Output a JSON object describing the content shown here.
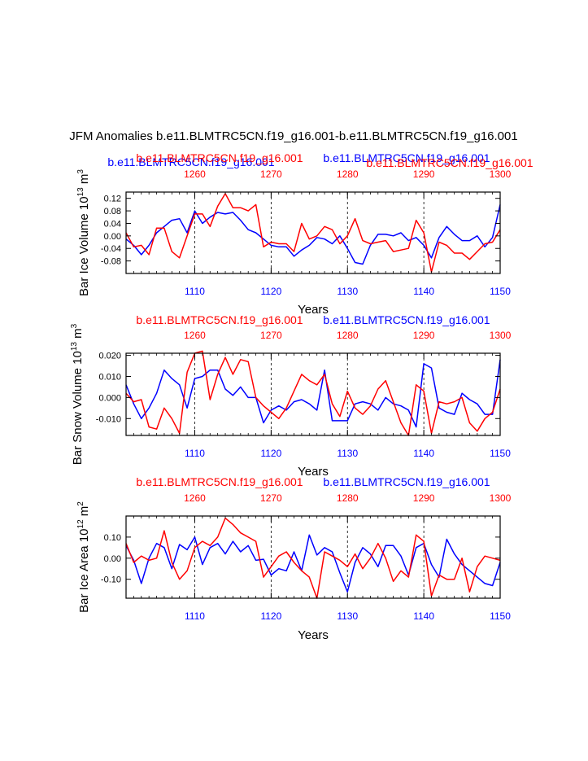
{
  "page_title": "JFM Anomalies b.e11.BLMTRC5CN.f19_g16.001-b.e11.BLMTRC5CN.f19_g16.001",
  "colors": {
    "case_a": "#0000ff",
    "case_b": "#ff0000",
    "axes": "#000000"
  },
  "header_labels": {
    "panel1_blue": "b.e11.BLMTRC5CN.f19_g16.001",
    "panel1_red_left": "b.e11.BLMTRC5CN.f19_g16.001",
    "panel1_blue_right": "b.e11.BLMTRC5CN.f19_g16.001",
    "panel1_red_right": "b.e11.BLMTRC5CN.f19_g16.001",
    "red_left": "b.e11.BLMTRC5CN.f19_g16.001",
    "blue_right": "b.e11.BLMTRC5CN.f19_g16.001"
  },
  "chart_data": [
    {
      "type": "line",
      "title": "",
      "xlabel": "Years",
      "ylabel": "Bar Ice Volume 10^13 m^3",
      "ylabel_main": "Bar Ice Volume 10",
      "ylabel_exp": "13",
      "ylabel_unit": "m",
      "ylabel_unit_exp": "3",
      "x_bottom": {
        "range": [
          1101,
          1150
        ],
        "ticks": [
          1110,
          1120,
          1130,
          1140,
          1150
        ],
        "tick_labels": [
          "1110",
          "1120",
          "1130",
          "1140",
          "1150"
        ]
      },
      "x_top": {
        "range": [
          1251,
          1300
        ],
        "ticks": [
          1260,
          1270,
          1280,
          1290,
          1300
        ],
        "tick_labels": [
          "1260",
          "1270",
          "1280",
          "1290",
          "1300"
        ]
      },
      "ylim": [
        -0.12,
        0.14
      ],
      "yticks": [
        -0.08,
        -0.04,
        0.0,
        0.04,
        0.08,
        0.12
      ],
      "ytick_labels": [
        "-0.08",
        "-0.04",
        "0.00",
        "0.04",
        "0.08",
        "0.12"
      ],
      "series": [
        {
          "name": "b.e11.BLMTRC5CN.f19_g16.001 (blue, years 1101-1150)",
          "color": "#0000ff",
          "x_start": 1101,
          "values": [
            -0.01,
            -0.03,
            -0.06,
            -0.03,
            0.01,
            0.03,
            0.05,
            0.055,
            0.01,
            0.08,
            0.04,
            0.06,
            0.075,
            0.07,
            0.075,
            0.05,
            0.02,
            0.01,
            -0.01,
            -0.03,
            -0.035,
            -0.035,
            -0.065,
            -0.045,
            -0.03,
            -0.005,
            -0.01,
            -0.025,
            0.0,
            -0.04,
            -0.085,
            -0.09,
            -0.03,
            0.005,
            0.005,
            0.0,
            0.01,
            -0.015,
            -0.005,
            -0.03,
            -0.07,
            -0.005,
            0.03,
            0.005,
            -0.015,
            -0.015,
            0.0,
            -0.035,
            -0.005,
            0.1
          ]
        },
        {
          "name": "b.e11.BLMTRC5CN.f19_g16.001 (red, years 1251-1300)",
          "color": "#ff0000",
          "x_start": 1101,
          "values": [
            0.01,
            -0.035,
            -0.03,
            -0.06,
            0.025,
            0.025,
            -0.05,
            -0.07,
            0.0,
            0.07,
            0.07,
            0.03,
            0.095,
            0.135,
            0.09,
            0.09,
            0.08,
            0.1,
            -0.035,
            -0.02,
            -0.025,
            -0.025,
            -0.05,
            0.04,
            -0.01,
            0.0,
            0.03,
            0.02,
            -0.025,
            0.0,
            0.055,
            -0.015,
            -0.025,
            -0.02,
            -0.015,
            -0.05,
            -0.045,
            -0.04,
            0.05,
            0.01,
            -0.115,
            -0.02,
            -0.03,
            -0.055,
            -0.055,
            -0.075,
            -0.05,
            -0.025,
            -0.02,
            0.02
          ]
        }
      ]
    },
    {
      "type": "line",
      "title": "",
      "xlabel": "Years",
      "ylabel": "Bar Snow Volume 10^13 m^3",
      "ylabel_main": "Bar Snow Volume 10",
      "ylabel_exp": "13",
      "ylabel_unit": "m",
      "ylabel_unit_exp": "3",
      "x_bottom": {
        "range": [
          1101,
          1150
        ],
        "ticks": [
          1110,
          1120,
          1130,
          1140,
          1150
        ],
        "tick_labels": [
          "1110",
          "1120",
          "1130",
          "1140",
          "1150"
        ]
      },
      "x_top": {
        "range": [
          1251,
          1300
        ],
        "ticks": [
          1260,
          1270,
          1280,
          1290,
          1300
        ],
        "tick_labels": [
          "1260",
          "1270",
          "1280",
          "1290",
          "1300"
        ]
      },
      "ylim": [
        -0.018,
        0.021
      ],
      "yticks": [
        -0.01,
        0.0,
        0.01,
        0.02
      ],
      "ytick_labels": [
        "-0.010",
        "0.000",
        "0.010",
        "0.020"
      ],
      "series": [
        {
          "name": "b.e11.BLMTRC5CN.f19_g16.001 (blue, years 1101-1150)",
          "color": "#0000ff",
          "x_start": 1101,
          "values": [
            0.006,
            -0.003,
            -0.01,
            -0.005,
            0.002,
            0.013,
            0.009,
            0.006,
            -0.005,
            0.009,
            0.01,
            0.013,
            0.013,
            0.004,
            0.001,
            0.005,
            -0.0,
            0.0,
            -0.012,
            -0.006,
            -0.004,
            -0.006,
            -0.002,
            -0.001,
            -0.003,
            -0.006,
            0.013,
            -0.011,
            -0.011,
            -0.011,
            -0.003,
            -0.002,
            -0.003,
            -0.006,
            0.0,
            -0.003,
            -0.004,
            -0.006,
            -0.014,
            0.016,
            0.014,
            -0.005,
            -0.007,
            -0.008,
            0.002,
            -0.001,
            -0.003,
            -0.008,
            -0.008,
            0.018
          ]
        },
        {
          "name": "b.e11.BLMTRC5CN.f19_g16.001 (red, years 1251-1300)",
          "color": "#ff0000",
          "x_start": 1101,
          "values": [
            0.002,
            -0.002,
            -0.001,
            -0.014,
            -0.015,
            -0.005,
            -0.01,
            -0.017,
            0.012,
            0.021,
            0.022,
            -0.001,
            0.011,
            0.019,
            0.011,
            0.018,
            0.017,
            0.0,
            -0.004,
            -0.007,
            -0.01,
            -0.005,
            0.003,
            0.011,
            0.008,
            0.006,
            0.011,
            -0.003,
            -0.009,
            0.003,
            -0.005,
            -0.008,
            -0.004,
            0.004,
            0.008,
            -0.002,
            -0.012,
            -0.018,
            0.006,
            0.003,
            -0.017,
            -0.002,
            -0.003,
            -0.002,
            0.0,
            -0.012,
            -0.016,
            -0.01,
            -0.007,
            0.004
          ]
        }
      ]
    },
    {
      "type": "line",
      "title": "",
      "xlabel": "Years",
      "ylabel": "Bar Ice Area 10^12 m^2",
      "ylabel_main": "Bar Ice Area 10",
      "ylabel_exp": "12",
      "ylabel_unit": "m",
      "ylabel_unit_exp": "2",
      "x_bottom": {
        "range": [
          1101,
          1150
        ],
        "ticks": [
          1110,
          1120,
          1130,
          1140,
          1150
        ],
        "tick_labels": [
          "1110",
          "1120",
          "1130",
          "1140",
          "1150"
        ]
      },
      "x_top": {
        "range": [
          1251,
          1300
        ],
        "ticks": [
          1260,
          1270,
          1280,
          1290,
          1300
        ],
        "tick_labels": [
          "1260",
          "1270",
          "1280",
          "1290",
          "1300"
        ]
      },
      "ylim": [
        -0.19,
        0.2
      ],
      "yticks": [
        -0.1,
        0.0,
        0.1
      ],
      "ytick_labels": [
        "-0.10",
        "0.00",
        "0.10"
      ],
      "series": [
        {
          "name": "b.e11.BLMTRC5CN.f19_g16.001 (blue, years 1101-1150)",
          "color": "#0000ff",
          "x_start": 1101,
          "values": [
            0.06,
            -0.01,
            -0.12,
            0.0,
            0.07,
            0.05,
            -0.05,
            0.065,
            0.04,
            0.1,
            -0.03,
            0.05,
            0.07,
            0.02,
            0.08,
            0.03,
            0.06,
            -0.01,
            -0.005,
            -0.08,
            -0.05,
            -0.06,
            0.03,
            -0.06,
            0.11,
            0.015,
            0.05,
            0.03,
            -0.07,
            -0.16,
            -0.02,
            0.05,
            0.02,
            -0.04,
            0.06,
            0.06,
            0.01,
            -0.08,
            0.05,
            0.07,
            -0.03,
            -0.09,
            0.09,
            0.02,
            -0.03,
            -0.06,
            -0.09,
            -0.12,
            -0.13,
            -0.02
          ]
        },
        {
          "name": "b.e11.BLMTRC5CN.f19_g16.001 (red, years 1251-1300)",
          "color": "#ff0000",
          "x_start": 1101,
          "values": [
            0.07,
            -0.02,
            0.01,
            -0.01,
            0.0,
            0.13,
            -0.02,
            -0.1,
            -0.06,
            0.05,
            0.08,
            0.06,
            0.1,
            0.19,
            0.16,
            0.12,
            0.1,
            0.08,
            -0.09,
            -0.04,
            0.01,
            0.03,
            -0.02,
            -0.06,
            -0.09,
            -0.19,
            0.03,
            0.01,
            -0.01,
            -0.04,
            0.02,
            -0.05,
            0.0,
            0.07,
            0.0,
            -0.11,
            -0.06,
            -0.09,
            0.11,
            0.08,
            -0.18,
            -0.08,
            -0.1,
            -0.1,
            0.0,
            -0.16,
            -0.04,
            0.01,
            0.0,
            -0.01
          ]
        }
      ]
    }
  ]
}
